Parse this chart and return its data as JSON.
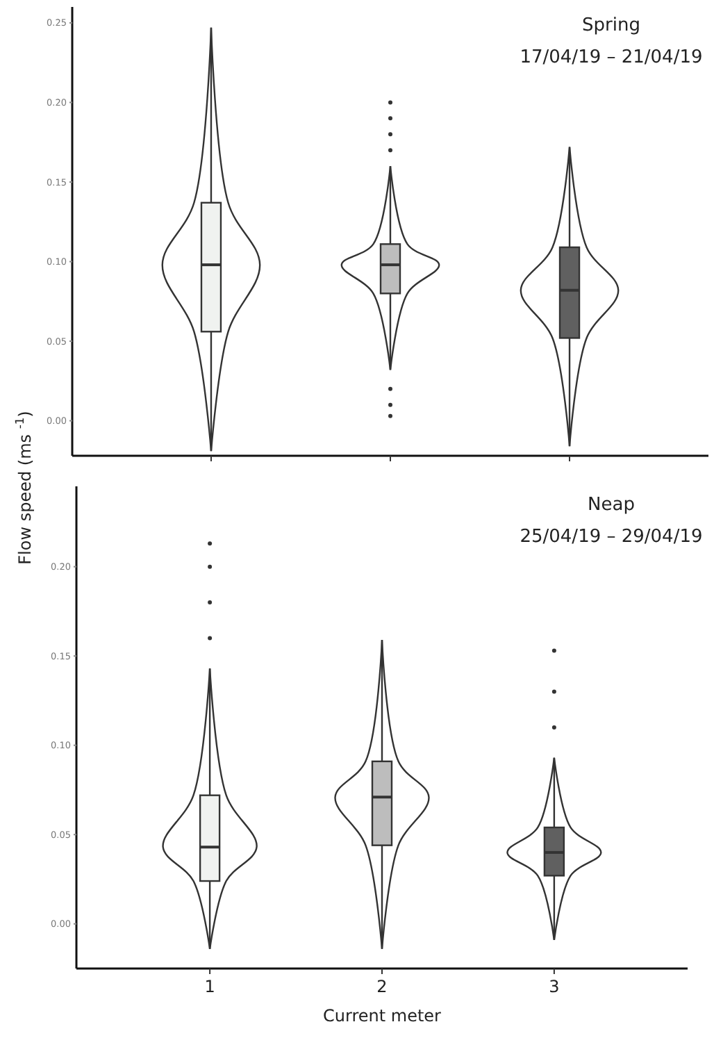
{
  "chart_data": [
    {
      "type": "box",
      "title": "Spring",
      "subtitle": "17/04/19 – 21/04/19",
      "ylabel": "Flow speed (ms $^{-1}$)",
      "categories": [
        null,
        null,
        null
      ],
      "colors": [
        "#f0f2f0",
        "#bdbdbd",
        "#606060"
      ],
      "ylim": [
        -0.022,
        0.26
      ],
      "yticks": [
        {
          "value": 0,
          "label": "0.00"
        },
        {
          "value": 0.05,
          "label": "0.05"
        },
        {
          "value": 0.1,
          "label": "0.10"
        },
        {
          "value": 0.15,
          "label": "0.15"
        },
        {
          "value": 0.2,
          "label": "0.20"
        },
        {
          "value": 0.25,
          "label": "0.25"
        }
      ],
      "tick_labels": "y",
      "boxes": [
        {
          "low": -0.019,
          "q1": 0.056,
          "median": 0.098,
          "q3": 0.137,
          "high": 0.247
        },
        {
          "low": 0.032,
          "q1": 0.08,
          "median": 0.098,
          "q3": 0.111,
          "high": 0.16,
          "outliers": [
            0.17,
            0.18,
            0.19,
            0.2,
            0.02,
            0.01,
            0.003
          ]
        },
        {
          "low": -0.016,
          "q1": 0.052,
          "median": 0.082,
          "q3": 0.109,
          "high": 0.172
        }
      ]
    },
    {
      "type": "box",
      "title": "Neap",
      "subtitle": "25/04/19 – 29/04/19",
      "xlabel": "Current meter",
      "categories": [
        "1",
        "2",
        "3"
      ],
      "colors": [
        "#f0f2f0",
        "#bdbdbd",
        "#606060"
      ],
      "ylim": [
        -0.025,
        0.245
      ],
      "yticks": [
        {
          "value": 0,
          "label": "0.00"
        },
        {
          "value": 0.05,
          "label": "0.05"
        },
        {
          "value": 0.1,
          "label": "0.10"
        },
        {
          "value": 0.15,
          "label": "0.15"
        },
        {
          "value": 0.2,
          "label": "0.20"
        }
      ],
      "boxes": [
        {
          "low": -0.014,
          "q1": 0.024,
          "median": 0.043,
          "q3": 0.072,
          "high": 0.143,
          "outliers": [
            0.16,
            0.18,
            0.2,
            0.213
          ]
        },
        {
          "low": -0.014,
          "q1": 0.044,
          "median": 0.071,
          "q3": 0.091,
          "high": 0.159
        },
        {
          "low": -0.009,
          "q1": 0.027,
          "median": 0.04,
          "q3": 0.054,
          "high": 0.093,
          "outliers": [
            0.11,
            0.13,
            0.153
          ]
        }
      ]
    }
  ]
}
